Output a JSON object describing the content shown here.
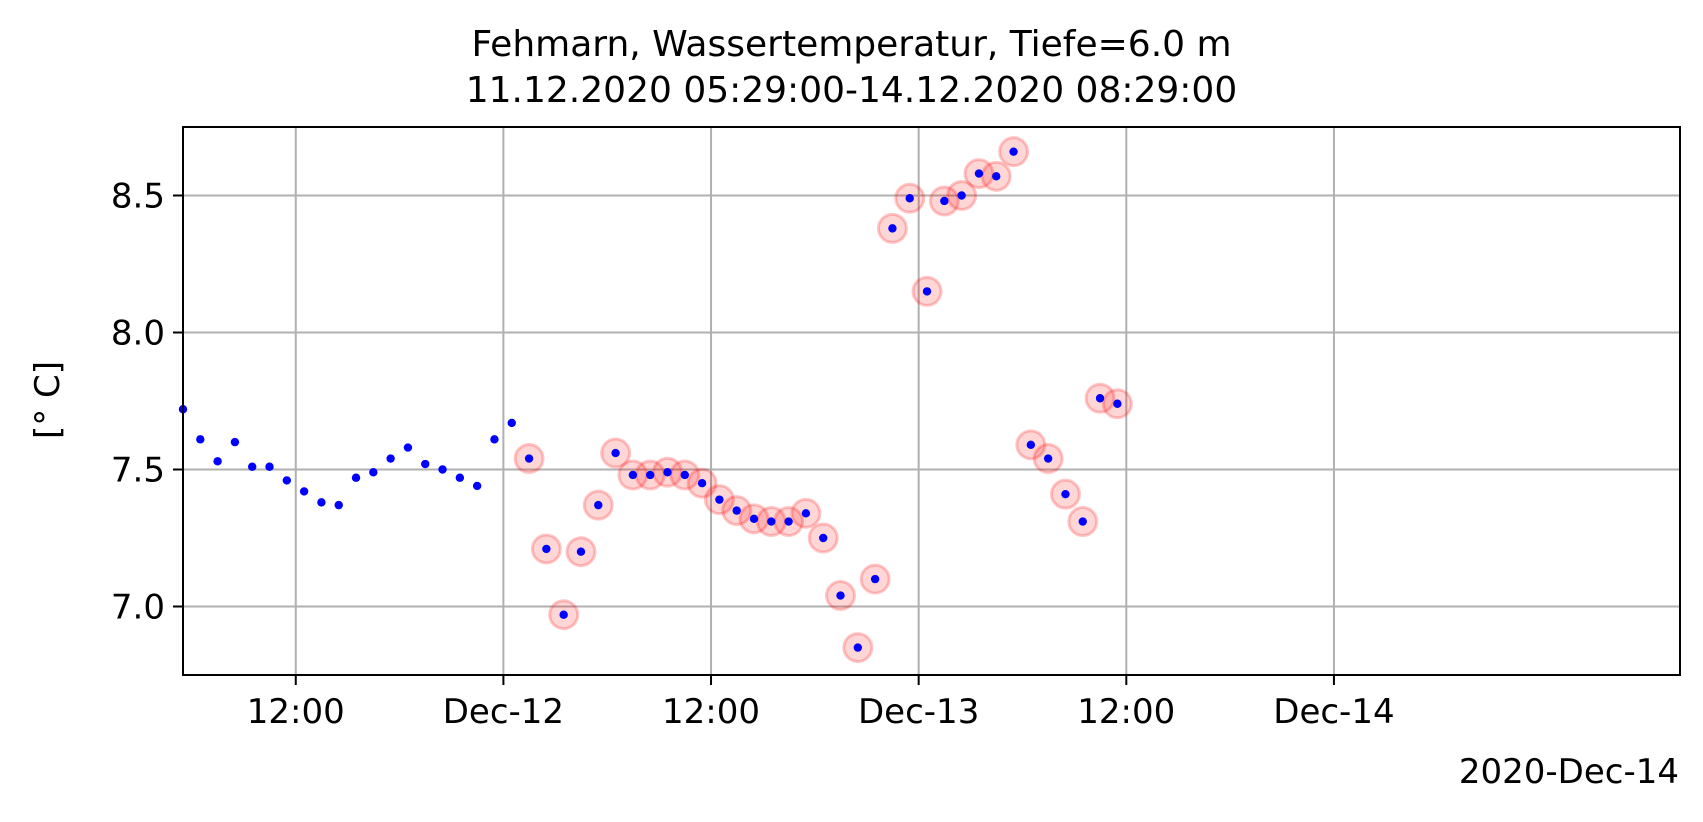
{
  "chart_data": {
    "type": "scatter",
    "title": [
      "Fehmarn, Wassertemperatur, Tiefe=6.0 m",
      "11.12.2020 05:29:00-14.12.2020 08:29:00"
    ],
    "xlabel": "",
    "ylabel": "[° C]",
    "x_offset_label": "2020-Dec-14",
    "x_type": "datetime",
    "xlim": [
      "2020-12-11 05:29",
      "2020-12-14 20:00"
    ],
    "ylim": [
      6.75,
      8.75
    ],
    "x_ticks": [
      {
        "value": "2020-12-11 12:00",
        "label": "12:00"
      },
      {
        "value": "2020-12-12 00:00",
        "label": "Dec-12"
      },
      {
        "value": "2020-12-12 12:00",
        "label": "12:00"
      },
      {
        "value": "2020-12-13 00:00",
        "label": "Dec-13"
      },
      {
        "value": "2020-12-13 12:00",
        "label": "12:00"
      },
      {
        "value": "2020-12-14 00:00",
        "label": "Dec-14"
      }
    ],
    "y_ticks": [
      {
        "value": 7.0,
        "label": "7.0"
      },
      {
        "value": 7.5,
        "label": "7.5"
      },
      {
        "value": 8.0,
        "label": "8.0"
      },
      {
        "value": 8.5,
        "label": "8.5"
      }
    ],
    "grid": true,
    "colors": {
      "point": "#0000ff",
      "flag": "#ff0000",
      "grid": "#b0b0b0",
      "axis": "#000000"
    },
    "series": [
      {
        "marker": "dot",
        "x": [
          "2020-12-11 05:29",
          "2020-12-11 06:29",
          "2020-12-11 07:29",
          "2020-12-11 08:29",
          "2020-12-11 09:29",
          "2020-12-11 10:29",
          "2020-12-11 11:29",
          "2020-12-11 12:29",
          "2020-12-11 13:29",
          "2020-12-11 14:29",
          "2020-12-11 15:29",
          "2020-12-11 16:29",
          "2020-12-11 17:29",
          "2020-12-11 18:29",
          "2020-12-11 19:29",
          "2020-12-11 20:29",
          "2020-12-11 21:29",
          "2020-12-11 22:29",
          "2020-12-11 23:29",
          "2020-12-12 00:29",
          "2020-12-12 01:29",
          "2020-12-12 02:29",
          "2020-12-12 03:29",
          "2020-12-12 04:29",
          "2020-12-12 05:29",
          "2020-12-12 06:29",
          "2020-12-12 07:29",
          "2020-12-12 08:29",
          "2020-12-12 09:29",
          "2020-12-12 10:29",
          "2020-12-12 11:29",
          "2020-12-12 12:29",
          "2020-12-12 13:29",
          "2020-12-12 14:29",
          "2020-12-12 15:29",
          "2020-12-12 16:29",
          "2020-12-12 17:29",
          "2020-12-12 18:29",
          "2020-12-12 19:29",
          "2020-12-12 20:29",
          "2020-12-12 21:29",
          "2020-12-12 22:29",
          "2020-12-12 23:29",
          "2020-12-13 00:29",
          "2020-12-13 01:29",
          "2020-12-13 02:29",
          "2020-12-13 03:29",
          "2020-12-13 04:29",
          "2020-12-13 05:29",
          "2020-12-13 06:29",
          "2020-12-13 07:29",
          "2020-12-13 08:29",
          "2020-12-13 09:29",
          "2020-12-13 10:29",
          "2020-12-13 11:29"
        ],
        "y": [
          7.72,
          7.61,
          7.53,
          7.6,
          7.51,
          7.51,
          7.46,
          7.42,
          7.38,
          7.37,
          7.47,
          7.49,
          7.54,
          7.58,
          7.52,
          7.5,
          7.47,
          7.44,
          7.61,
          7.67,
          7.54,
          7.21,
          6.97,
          7.2,
          7.37,
          7.56,
          7.48,
          7.48,
          7.49,
          7.48,
          7.45,
          7.39,
          7.35,
          7.32,
          7.31,
          7.31,
          7.34,
          7.25,
          7.04,
          6.85,
          7.1,
          8.38,
          8.49,
          8.15,
          8.48,
          8.5,
          8.58,
          8.57,
          8.66,
          7.59,
          7.54,
          7.41,
          7.31,
          7.76,
          7.74
        ],
        "flagged": [
          false,
          false,
          false,
          false,
          false,
          false,
          false,
          false,
          false,
          false,
          false,
          false,
          false,
          false,
          false,
          false,
          false,
          false,
          false,
          false,
          true,
          true,
          true,
          true,
          true,
          true,
          true,
          true,
          true,
          true,
          true,
          true,
          true,
          true,
          true,
          true,
          true,
          true,
          true,
          true,
          true,
          true,
          true,
          true,
          true,
          true,
          true,
          true,
          true,
          true,
          true,
          true,
          true,
          true,
          true
        ]
      }
    ]
  }
}
